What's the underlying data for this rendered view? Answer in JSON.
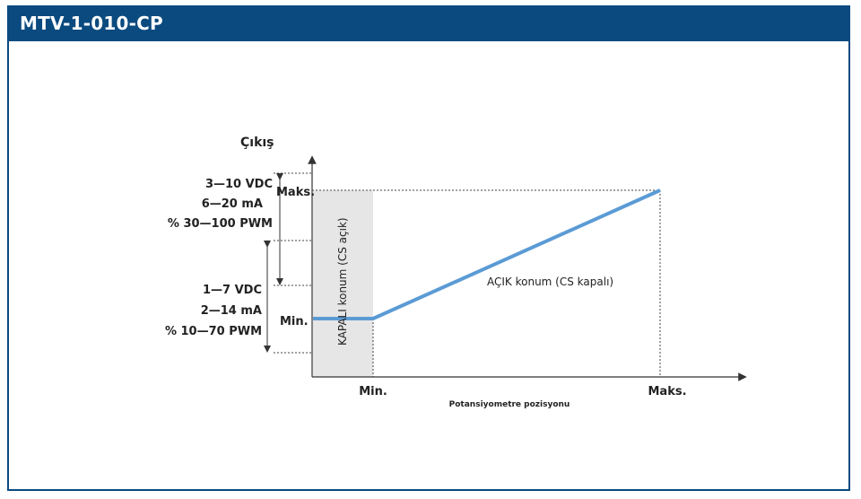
{
  "header": {
    "title": "MTV-1-010-CP"
  },
  "diagram": {
    "y_axis_title": "Çıkış",
    "x_axis_title": "Potansiyometre pozisyonu",
    "y_tick_max": "Maks.",
    "y_tick_min": "Min.",
    "x_tick_min": "Min.",
    "x_tick_max": "Maks.",
    "upper_range": [
      "3—10 VDC",
      "6—20 mA",
      "% 30—100 PWM"
    ],
    "lower_range": [
      "1—7 VDC",
      "2—14 mA",
      "% 10—70 PWM"
    ],
    "closed_zone_label": "KAPALI konum (CS açık)",
    "open_zone_label": "AÇIK konum (CS kapalı)"
  },
  "colors": {
    "header": "#0a4a7f",
    "curve": "#5b9bd5",
    "closed_zone": "#e6e6e6"
  }
}
